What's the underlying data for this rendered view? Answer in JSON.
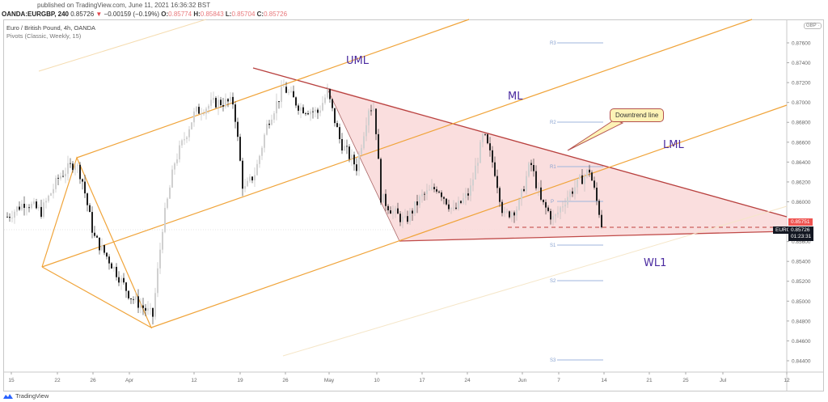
{
  "header": {
    "published": "published on TradingView.com, June 11, 2021 16:36:32 BST",
    "symbol": "OANDA:EURGBP, 240",
    "last": "0.85726",
    "change": "−0.00159 (−0.19%)",
    "o_label": "O:",
    "o_val": "0.85774",
    "h_label": "H:",
    "h_val": "0.85843",
    "l_label": "L:",
    "l_val": "0.85704",
    "c_label": "C:",
    "c_val": "0.85726"
  },
  "legend": {
    "title": "Euro / British Pound, 4h, OANDA",
    "indicator": "Pivots (Classic, Weekly, 15)"
  },
  "annotations": {
    "uml": "UML",
    "ml": "ML",
    "lml": "LML",
    "wl1": "WL1",
    "callout": "Downtrend line"
  },
  "price_axis": {
    "currency": "GBP ·",
    "ticks": [
      "0.87600",
      "0.87400",
      "0.87200",
      "0.87000",
      "0.86800",
      "0.86600",
      "0.86400",
      "0.86200",
      "0.86000",
      "0.85600",
      "0.85400",
      "0.85200",
      "0.85000",
      "0.84800",
      "0.84600",
      "0.84400"
    ],
    "tag_high": "0.85751",
    "tag_symbol": "EURGBP",
    "tag_price": "0.85726",
    "tag_countdown": "01:23:31"
  },
  "time_axis": {
    "ticks": [
      "15",
      "22",
      "26",
      "Apr",
      "12",
      "19",
      "26",
      "May",
      "10",
      "17",
      "24",
      "Jun",
      "7",
      "14",
      "21",
      "25",
      "Jul",
      "12"
    ]
  },
  "pivots": [
    "R3",
    "R2",
    "R1",
    "P",
    "S1",
    "S2",
    "S3"
  ],
  "brand": "TradingView",
  "colors": {
    "pitchfork": "#f0a43a",
    "triangle_fill": "#f9d6d6",
    "trendline": "#b8403e",
    "pivot": "#9fb6dc",
    "label": "#4a2aa0",
    "down": "#e0474c"
  },
  "chart_data": {
    "type": "candlestick",
    "title": "Euro / British Pound, 4h, OANDA",
    "symbol": "EURGBP",
    "timeframe": "4h",
    "ylim": [
      0.8435,
      0.8785
    ],
    "x_ticks": [
      "15",
      "22",
      "26",
      "Apr",
      "12",
      "19",
      "26",
      "May",
      "10",
      "17",
      "24",
      "Jun",
      "7",
      "14",
      "21",
      "25",
      "Jul",
      "12"
    ],
    "y_ticks": [
      0.876,
      0.874,
      0.872,
      0.87,
      0.868,
      0.866,
      0.864,
      0.862,
      0.86,
      0.858,
      0.856,
      0.854,
      0.852,
      0.85,
      0.848,
      0.846,
      0.844
    ],
    "last_price": 0.85726,
    "ohlc_last": {
      "open": 0.85774,
      "high": 0.85843,
      "low": 0.85704,
      "close": 0.85726
    },
    "approx_close_path": [
      {
        "date": "Mar 15",
        "price": 0.8585
      },
      {
        "date": "Mar 22",
        "price": 0.864
      },
      {
        "date": "Mar 26",
        "price": 0.8555
      },
      {
        "date": "Apr 1",
        "price": 0.849
      },
      {
        "date": "Apr 6",
        "price": 0.86
      },
      {
        "date": "Apr 12",
        "price": 0.868
      },
      {
        "date": "Apr 16",
        "price": 0.87
      },
      {
        "date": "Apr 19",
        "price": 0.861
      },
      {
        "date": "Apr 26",
        "price": 0.871
      },
      {
        "date": "May 3",
        "price": 0.87
      },
      {
        "date": "May 6",
        "price": 0.864
      },
      {
        "date": "May 10",
        "price": 0.869
      },
      {
        "date": "May 12",
        "price": 0.86
      },
      {
        "date": "May 17",
        "price": 0.859
      },
      {
        "date": "May 24",
        "price": 0.8615
      },
      {
        "date": "May 27",
        "price": 0.866
      },
      {
        "date": "Jun 1",
        "price": 0.858
      },
      {
        "date": "Jun 7",
        "price": 0.859
      },
      {
        "date": "Jun 10",
        "price": 0.863
      },
      {
        "date": "Jun 11",
        "price": 0.85726
      }
    ],
    "pivot_levels": {
      "R3": 0.8762,
      "R2": 0.8681,
      "R1": 0.8637,
      "P": 0.86,
      "S1": 0.8556,
      "S2": 0.852,
      "S3": 0.844
    },
    "annotations": [
      "UML",
      "ML",
      "LML",
      "WL1",
      "Downtrend line"
    ],
    "drawings": [
      "Andrews pitchfork (orange)",
      "Descending triangle (pink fill)",
      "Downtrend line (red)",
      "Dashed support 0.8576"
    ]
  }
}
